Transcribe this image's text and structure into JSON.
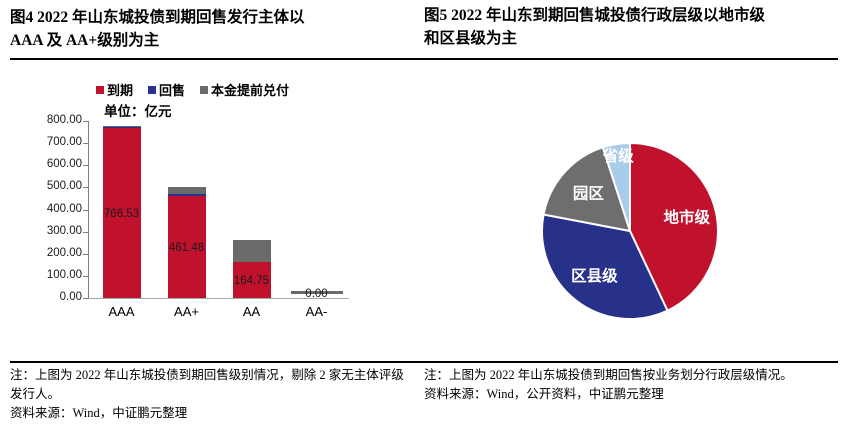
{
  "left_panel": {
    "title": "图4  2022 年山东城投债到期回售发行主体以\nAAA 及 AA+级别为主",
    "note": "注：上图为 2022 年山东城投债到期回售级别情况，剔除 2 家无主体评级发行人。",
    "source": "资料来源：Wind，中证鹏元整理"
  },
  "right_panel": {
    "title": "图5  2022 年山东到期回售城投债行政层级以地市级\n和区县级为主",
    "note": "注：上图为 2022 年山东城投债到期回售按业务划分行政层级情况。",
    "source": "资料来源：Wind，公开资料，中证鹏元整理"
  },
  "chart_data": [
    {
      "type": "bar",
      "stacked": true,
      "unit_label": "单位：亿元",
      "categories": [
        "AAA",
        "AA+",
        "AA",
        "AA-"
      ],
      "series": [
        {
          "key": "maturity",
          "name": "到期",
          "color": "#c1122d",
          "values": [
            766.53,
            461.48,
            164.75,
            0
          ]
        },
        {
          "key": "put-resale",
          "name": "回售",
          "color": "#2a3190",
          "values": [
            10,
            10,
            0,
            0
          ]
        },
        {
          "key": "early-principal-repayment",
          "name": "本金提前兑付",
          "color": "#6a6a6a",
          "values": [
            2,
            29,
            99,
            0
          ]
        }
      ],
      "data_labels": [
        "766.53",
        "461.48",
        "164.75",
        "0.00"
      ],
      "ylim": [
        0,
        800
      ],
      "ytick_step": 100,
      "yticks": [
        "800.00",
        "700.00",
        "600.00",
        "500.00",
        "400.00",
        "300.00",
        "200.00",
        "100.00",
        "0.00"
      ],
      "legend_position": "top",
      "grid": false
    },
    {
      "type": "pie",
      "start_angle_deg": 0,
      "direction": "clockwise",
      "label_color": "#ffffff",
      "slices": [
        {
          "key": "prefecture-level",
          "label": "地市级",
          "pct": 43,
          "color": "#c1122d",
          "label_r": 0.66
        },
        {
          "key": "district-county-level",
          "label": "区县级",
          "pct": 35,
          "color": "#283189",
          "label_r": 0.66
        },
        {
          "key": "park-level",
          "label": "园区",
          "pct": 17,
          "color": "#6e6e6e",
          "label_r": 0.63
        },
        {
          "key": "provincial-level",
          "label": "省级",
          "pct": 5,
          "color": "#a9cbec",
          "label_r": 0.85
        }
      ]
    }
  ]
}
